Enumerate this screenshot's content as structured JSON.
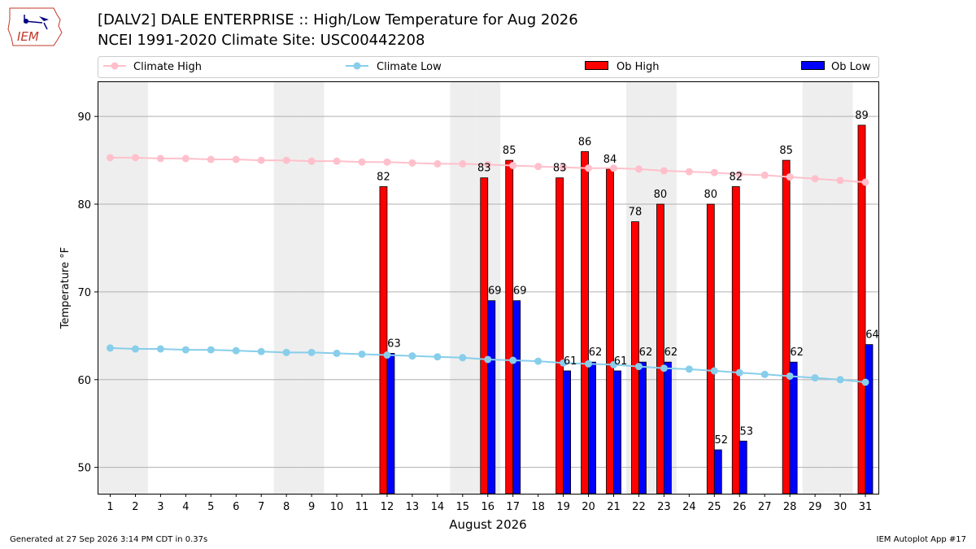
{
  "logo_text": "IEM",
  "title_line1": "[DALV2] DALE ENTERPRISE :: High/Low Temperature for Aug 2026",
  "title_line2": "NCEI 1991-2020 Climate Site: USC00442208",
  "footer_left": "Generated at 27 Sep 2026 3:14 PM CDT in 0.37s",
  "footer_right": "IEM Autoplot App #17",
  "chart_data": {
    "type": "bar",
    "xlabel": "August 2026",
    "ylabel": "Temperature °F",
    "ylim": [
      47,
      94
    ],
    "yticks": [
      50,
      60,
      70,
      80,
      90
    ],
    "grid": "horizontal",
    "legend_placement": "top",
    "legend": [
      "Climate High",
      "Climate Low",
      "Ob High",
      "Ob Low"
    ],
    "colors": {
      "climate_high": "#ffc0cb",
      "climate_low": "#87ceeb",
      "ob_high": "#ff0000",
      "ob_low": "#0000ff",
      "weekend_shade": "#eeeeee",
      "grid": "#b0b0b0"
    },
    "days": [
      1,
      2,
      3,
      4,
      5,
      6,
      7,
      8,
      9,
      10,
      11,
      12,
      13,
      14,
      15,
      16,
      17,
      18,
      19,
      20,
      21,
      22,
      23,
      24,
      25,
      26,
      27,
      28,
      29,
      30,
      31
    ],
    "shaded_days": [
      1,
      2,
      8,
      9,
      15,
      16,
      22,
      23,
      29,
      30
    ],
    "climate_high": [
      85.3,
      85.3,
      85.2,
      85.2,
      85.1,
      85.1,
      85.0,
      85.0,
      84.9,
      84.9,
      84.8,
      84.8,
      84.7,
      84.6,
      84.6,
      84.5,
      84.4,
      84.3,
      84.2,
      84.1,
      84.1,
      84.0,
      83.8,
      83.7,
      83.6,
      83.4,
      83.3,
      83.1,
      82.9,
      82.7,
      82.5
    ],
    "climate_low": [
      63.6,
      63.5,
      63.5,
      63.4,
      63.4,
      63.3,
      63.2,
      63.1,
      63.1,
      63.0,
      62.9,
      62.8,
      62.7,
      62.6,
      62.5,
      62.3,
      62.2,
      62.1,
      61.9,
      61.8,
      61.7,
      61.5,
      61.3,
      61.2,
      61.0,
      60.8,
      60.6,
      60.4,
      60.2,
      60.0,
      59.7
    ],
    "ob_high": [
      null,
      null,
      null,
      null,
      null,
      null,
      null,
      null,
      null,
      null,
      null,
      82,
      null,
      null,
      null,
      83,
      85,
      null,
      83,
      86,
      84,
      78,
      80,
      null,
      80,
      82,
      null,
      85,
      null,
      null,
      89
    ],
    "ob_low": [
      null,
      null,
      null,
      null,
      null,
      null,
      null,
      null,
      null,
      null,
      null,
      63,
      null,
      null,
      null,
      69,
      69,
      null,
      61,
      62,
      61,
      62,
      62,
      null,
      52,
      53,
      null,
      62,
      null,
      null,
      64
    ]
  }
}
